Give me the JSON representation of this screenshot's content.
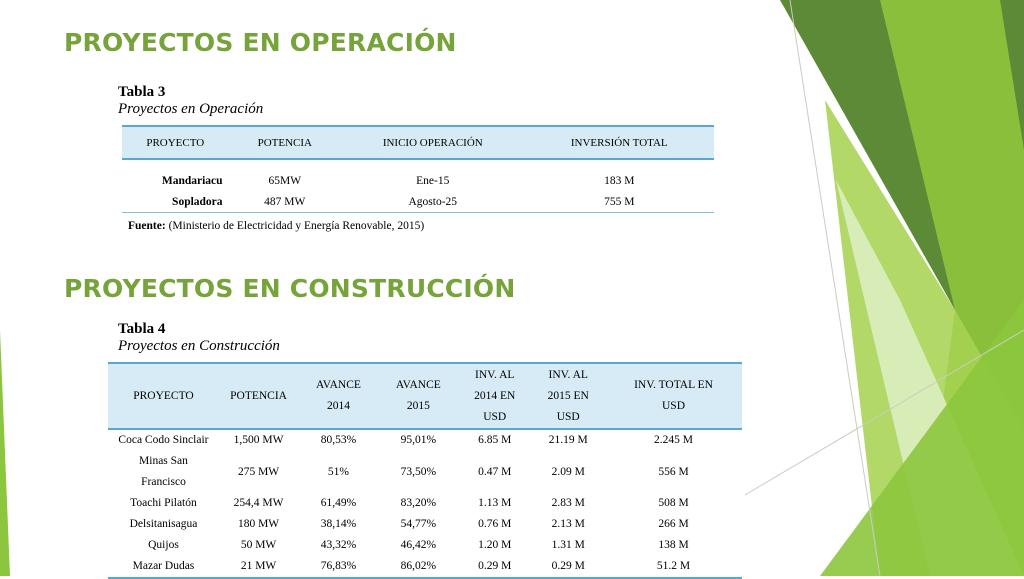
{
  "colors": {
    "heading": "#76a33a",
    "table_header_bg": "#d6ebf5",
    "table_rule": "#58a7cf",
    "deco_dark_green": "#5c8a37",
    "deco_light_green": "#a5d14d",
    "deco_pale_green": "#dceec0"
  },
  "section_operacion": {
    "heading": "PROYECTOS EN OPERACIÓN",
    "table_number": "Tabla 3",
    "table_subtitle": "Proyectos en Operación",
    "columns": [
      "PROYECTO",
      "POTENCIA",
      "INICIO OPERACIÓN",
      "INVERSIÓN TOTAL"
    ],
    "rows": [
      {
        "proyecto": "Mandariacu",
        "potencia": "65MW",
        "inicio": "Ene-15",
        "inversion": "183 M"
      },
      {
        "proyecto": "Sopladora",
        "potencia": "487 MW",
        "inicio": "Agosto-25",
        "inversion": "755 M"
      }
    ],
    "source_label": "Fuente:",
    "source_text": " (Ministerio de Electricidad y Energía Renovable, 2015)"
  },
  "section_construccion": {
    "heading": "PROYECTOS EN CONSTRUCCIÓN",
    "table_number": "Tabla 4",
    "table_subtitle": "Proyectos en Construcción",
    "columns": [
      {
        "line1": "PROYECTO",
        "line2": "",
        "line3": ""
      },
      {
        "line1": "POTENCIA",
        "line2": "",
        "line3": ""
      },
      {
        "line1": "AVANCE",
        "line2": "2014",
        "line3": ""
      },
      {
        "line1": "AVANCE",
        "line2": "2015",
        "line3": ""
      },
      {
        "line1": "INV. AL",
        "line2": "2014 EN",
        "line3": "USD"
      },
      {
        "line1": "INV. AL",
        "line2": "2015 EN",
        "line3": "USD"
      },
      {
        "line1": "INV. TOTAL EN",
        "line2": "USD",
        "line3": ""
      }
    ],
    "rows": [
      {
        "proyecto": "Coca Codo Sinclair",
        "proyecto2": "",
        "potencia": "1,500 MW",
        "avance2014": "80,53%",
        "avance2015": "95,01%",
        "inv2014": "6.85 M",
        "inv2015": "21.19 M",
        "total": "2.245 M"
      },
      {
        "proyecto": "Minas San",
        "proyecto2": "Francisco",
        "potencia": "275 MW",
        "avance2014": "51%",
        "avance2015": "73,50%",
        "inv2014": "0.47 M",
        "inv2015": "2.09 M",
        "total": "556 M"
      },
      {
        "proyecto": "Toachi Pilatón",
        "proyecto2": "",
        "potencia": "254,4 MW",
        "avance2014": "61,49%",
        "avance2015": "83,20%",
        "inv2014": "1.13 M",
        "inv2015": "2.83 M",
        "total": "508 M"
      },
      {
        "proyecto": "Delsitanisagua",
        "proyecto2": "",
        "potencia": "180 MW",
        "avance2014": "38,14%",
        "avance2015": "54,77%",
        "inv2014": "0.76 M",
        "inv2015": "2.13 M",
        "total": "266 M"
      },
      {
        "proyecto": "Quijos",
        "proyecto2": "",
        "potencia": "50 MW",
        "avance2014": "43,32%",
        "avance2015": "46,42%",
        "inv2014": "1.20 M",
        "inv2015": "1.31 M",
        "total": "138 M"
      },
      {
        "proyecto": "Mazar Dudas",
        "proyecto2": "",
        "potencia": "21 MW",
        "avance2014": "76,83%",
        "avance2015": "86,02%",
        "inv2014": "0.29 M",
        "inv2015": "0.29 M",
        "total": "51.2 M"
      }
    ]
  }
}
